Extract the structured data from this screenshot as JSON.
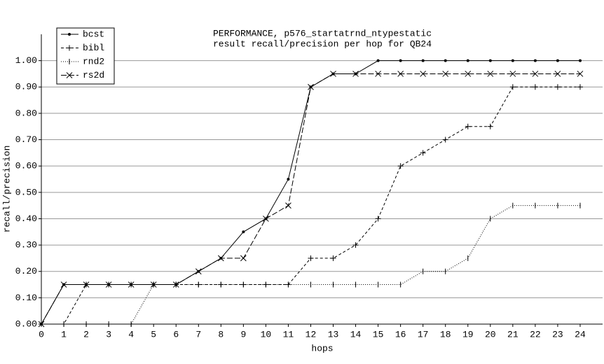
{
  "chart_data": {
    "type": "line",
    "title": [
      "PERFORMANCE, p576_startatrnd_ntypestatic",
      "result recall/precision per hop for QB24"
    ],
    "xlabel": "hops",
    "ylabel": "recall/precision",
    "x": [
      0,
      1,
      2,
      3,
      4,
      5,
      6,
      7,
      8,
      9,
      10,
      11,
      12,
      13,
      14,
      15,
      16,
      17,
      18,
      19,
      20,
      21,
      22,
      23,
      24
    ],
    "xlim": [
      0,
      25
    ],
    "xticks": [
      0,
      1,
      2,
      3,
      4,
      5,
      6,
      7,
      8,
      9,
      10,
      11,
      12,
      13,
      14,
      15,
      16,
      17,
      18,
      19,
      20,
      21,
      22,
      23,
      24
    ],
    "ylim": [
      0,
      1.1
    ],
    "yticks": [
      {
        "value": 0,
        "label": "0.00"
      },
      {
        "value": 0.1,
        "label": "0.10"
      },
      {
        "value": 0.2,
        "label": "0.20"
      },
      {
        "value": 0.3,
        "label": "0.30"
      },
      {
        "value": 0.4,
        "label": "0.40"
      },
      {
        "value": 0.5,
        "label": "0.50"
      },
      {
        "value": 0.6,
        "label": "0.60"
      },
      {
        "value": 0.7,
        "label": "0.70"
      },
      {
        "value": 0.8,
        "label": "0.80"
      },
      {
        "value": 0.9,
        "label": "0.90"
      },
      {
        "value": 1,
        "label": "1.00"
      }
    ],
    "grid": true,
    "legend": "upper left",
    "series": [
      {
        "name": "bcst",
        "color": "#000000",
        "marker": "dot",
        "linestyle": "solid",
        "values": [
          0,
          0.15,
          0.15,
          0.15,
          0.15,
          0.15,
          0.15,
          0.2,
          0.25,
          0.35,
          0.4,
          0.55,
          0.9,
          0.95,
          0.95,
          1,
          1,
          1,
          1,
          1,
          1,
          1,
          1,
          1,
          1
        ]
      },
      {
        "name": "bibl",
        "color": "#000000",
        "marker": "plus",
        "linestyle": "dashed",
        "values": [
          0,
          0,
          0.15,
          0.15,
          0.15,
          0.15,
          0.15,
          0.15,
          0.15,
          0.15,
          0.15,
          0.15,
          0.25,
          0.25,
          0.3,
          0.4,
          0.6,
          0.65,
          0.7,
          0.75,
          0.75,
          0.9,
          0.9,
          0.9,
          0.9
        ]
      },
      {
        "name": "rnd2",
        "color": "#000000",
        "marker": "vtick",
        "linestyle": "dotted",
        "values": [
          0,
          0,
          0,
          0,
          0,
          0.15,
          0.15,
          0.15,
          0.15,
          0.15,
          0.15,
          0.15,
          0.15,
          0.15,
          0.15,
          0.15,
          0.15,
          0.2,
          0.2,
          0.25,
          0.4,
          0.45,
          0.45,
          0.45,
          0.45
        ]
      },
      {
        "name": "rs2d",
        "color": "#000000",
        "marker": "cross",
        "linestyle": "longdash",
        "values": [
          0,
          0.15,
          0.15,
          0.15,
          0.15,
          0.15,
          0.15,
          0.2,
          0.25,
          0.25,
          0.4,
          0.45,
          0.9,
          0.95,
          0.95,
          0.95,
          0.95,
          0.95,
          0.95,
          0.95,
          0.95,
          0.95,
          0.95,
          0.95,
          0.95
        ]
      }
    ]
  }
}
